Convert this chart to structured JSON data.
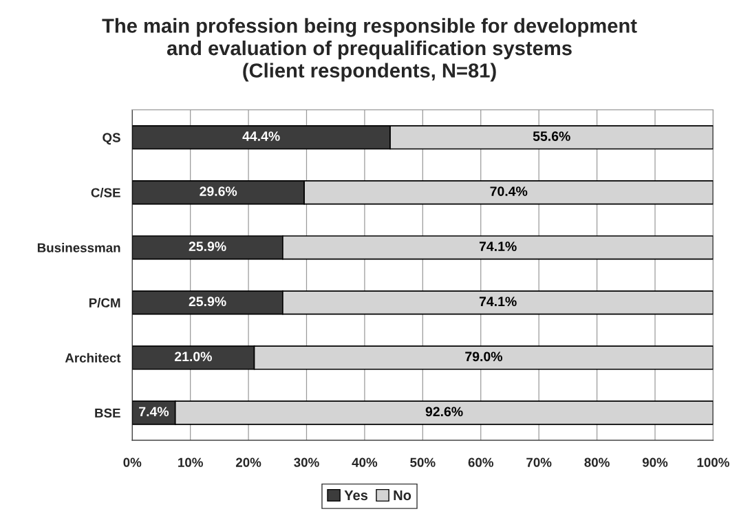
{
  "chart_data": {
    "type": "bar",
    "orientation": "horizontal",
    "stacked": true,
    "title": "The main profession being responsible for development\nand evaluation of prequalification systems\n(Client respondents, N=81)",
    "categories": [
      "QS",
      "C/SE",
      "Businessman",
      "P/CM",
      "Architect",
      "BSE"
    ],
    "series": [
      {
        "name": "Yes",
        "color": "#3c3c3c",
        "values": [
          44.4,
          29.6,
          25.9,
          25.9,
          21.0,
          7.4
        ],
        "value_labels": [
          "44.4%",
          "29.6%",
          "25.9%",
          "25.9%",
          "21.0%",
          "7.4%"
        ]
      },
      {
        "name": "No",
        "color": "#d4d4d4",
        "values": [
          55.6,
          70.4,
          74.1,
          74.1,
          79.0,
          92.6
        ],
        "value_labels": [
          "55.6%",
          "70.4%",
          "74.1%",
          "74.1%",
          "79.0%",
          "92.6%"
        ]
      }
    ],
    "xlim": [
      0,
      100
    ],
    "xticks": [
      {
        "value": 0,
        "label": "0%"
      },
      {
        "value": 10,
        "label": "10%"
      },
      {
        "value": 20,
        "label": "20%"
      },
      {
        "value": 30,
        "label": "30%"
      },
      {
        "value": 40,
        "label": "40%"
      },
      {
        "value": 50,
        "label": "50%"
      },
      {
        "value": 60,
        "label": "60%"
      },
      {
        "value": 70,
        "label": "70%"
      },
      {
        "value": 80,
        "label": "80%"
      },
      {
        "value": 90,
        "label": "90%"
      },
      {
        "value": 100,
        "label": "100%"
      }
    ],
    "grid": "x",
    "legend": "bottom"
  }
}
